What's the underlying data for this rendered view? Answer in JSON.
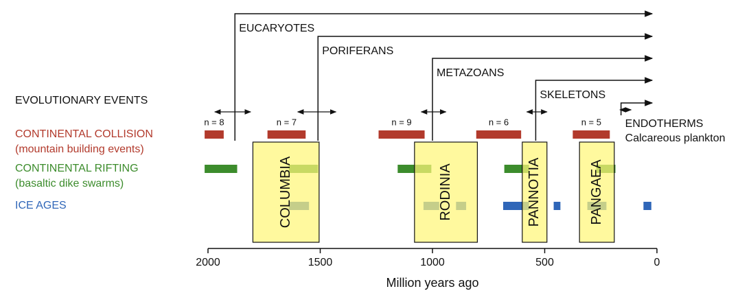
{
  "chart_data": {
    "type": "timeline",
    "xlabel": "Million years ago",
    "xlim": [
      2000,
      0
    ],
    "xticks": [
      2000,
      1500,
      1000,
      500,
      0
    ],
    "events_label": "EVOLUTIONARY EVENTS",
    "events": [
      {
        "name": "EUCARYOTES",
        "value": 1880,
        "range": [
          1970,
          1810
        ]
      },
      {
        "name": "PORIFERANS",
        "value": 1510,
        "range": [
          1600,
          1430
        ]
      },
      {
        "name": "METAZOANS",
        "value": 1000,
        "range": [
          1050,
          940
        ]
      },
      {
        "name": "SKELETONS",
        "value": 540,
        "range": [
          580,
          490
        ]
      },
      {
        "name": "ENDOTHERMS",
        "note": "Calcareous plankton",
        "value": 160,
        "range": [
          165,
          115
        ]
      }
    ],
    "rows": [
      {
        "name": "CONTINENTAL COLLISION",
        "note": "(mountain building events)",
        "color": "#b23a2c",
        "bars": [
          [
            2015,
            1930
          ],
          [
            1735,
            1565
          ],
          [
            1240,
            1035
          ],
          [
            805,
            605
          ],
          [
            375,
            210
          ]
        ],
        "bar_labels": [
          "n = 8",
          "n = 7",
          "n = 9",
          "n = 6",
          "n = 5"
        ]
      },
      {
        "name": "CONTINENTAL RIFTING",
        "note": "(basaltic dike swarms)",
        "color": "#3c8c2c",
        "bars": [
          [
            2015,
            1870
          ],
          [
            1640,
            1510
          ],
          [
            1155,
            1005
          ],
          [
            680,
            570
          ],
          [
            270,
            185
          ]
        ]
      },
      {
        "name": "ICE AGES",
        "color": "#2f66b8",
        "bars": [
          [
            1640,
            1550
          ],
          [
            1040,
            970
          ],
          [
            895,
            850
          ],
          [
            685,
            570
          ],
          [
            460,
            430
          ],
          [
            310,
            225
          ],
          [
            60,
            25
          ]
        ]
      }
    ],
    "supercontinents": [
      {
        "name": "COLUMBIA",
        "range": [
          1800,
          1505
        ]
      },
      {
        "name": "RODINIA",
        "range": [
          1080,
          800
        ]
      },
      {
        "name": "PANNOTIA",
        "range": [
          600,
          490
        ]
      },
      {
        "name": "PANGAEA",
        "range": [
          345,
          190
        ]
      }
    ]
  }
}
